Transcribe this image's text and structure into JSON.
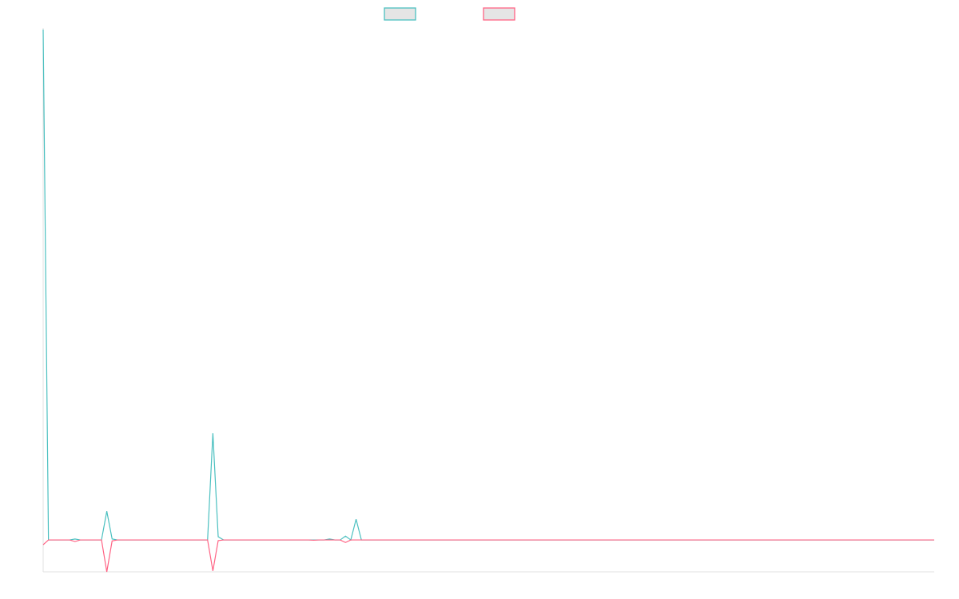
{
  "chart_data": {
    "type": "line",
    "title": "",
    "xlabel": "",
    "ylabel": "",
    "ylim": [
      -1,
      16
    ],
    "grid": false,
    "legend_placement": "top",
    "x_count": 169,
    "series": [
      {
        "color": "#4bc0c0",
        "legend_fill": "#e5e5e5",
        "values": [
          16,
          0,
          0,
          0,
          0,
          0,
          0.03,
          0,
          0,
          0,
          0,
          0,
          0.9,
          0.03,
          0,
          0,
          0,
          0,
          0,
          0,
          0,
          0,
          0,
          0,
          0,
          0,
          0,
          0,
          0,
          0,
          0,
          0,
          3.35,
          0.1,
          0,
          0,
          0,
          0,
          0,
          0,
          0,
          0,
          0,
          0,
          0,
          0,
          0,
          0,
          0,
          0,
          0,
          0,
          0,
          0,
          0.03,
          0,
          0,
          0.12,
          0,
          0.65,
          0,
          0,
          0,
          0,
          0,
          0,
          0,
          0,
          0,
          0,
          0,
          0,
          0,
          0,
          0,
          0,
          0,
          0,
          0,
          0,
          0,
          0,
          0,
          0,
          0,
          0,
          0,
          0,
          0,
          0,
          0,
          0,
          0,
          0,
          0,
          0,
          0,
          0,
          0,
          0,
          0,
          0,
          0,
          0,
          0,
          0,
          0,
          0,
          0,
          0,
          0,
          0,
          0,
          0,
          0,
          0,
          0,
          0,
          0,
          0,
          0,
          0,
          0,
          0,
          0,
          0,
          0,
          0,
          0,
          0,
          0,
          0,
          0,
          0,
          0,
          0,
          0,
          0,
          0,
          0,
          0,
          0,
          0,
          0,
          0,
          0,
          0,
          0,
          0,
          0,
          0,
          0,
          0,
          0,
          0,
          0,
          0,
          0,
          0,
          0,
          0,
          0,
          0,
          0,
          0,
          0,
          0,
          0,
          0
        ]
      },
      {
        "color": "#ff6384",
        "legend_fill": "#e5e5e5",
        "values": [
          -0.15,
          0,
          0,
          0,
          0,
          0,
          -0.05,
          0,
          0,
          0,
          0,
          0,
          -1,
          -0.03,
          0,
          0,
          0,
          0,
          0,
          0,
          0,
          0,
          0,
          0,
          0,
          0,
          0,
          0,
          0,
          0,
          0,
          0,
          -0.97,
          -0.02,
          0,
          0,
          0,
          0,
          0,
          0,
          0,
          0,
          0,
          0,
          0,
          0,
          0,
          0,
          0,
          0,
          0,
          -0.01,
          0,
          0,
          0,
          0,
          0,
          -0.08,
          0,
          0,
          0,
          0,
          0,
          0,
          0,
          0,
          0,
          0,
          0,
          0,
          0,
          0,
          0,
          0,
          0,
          0,
          0,
          0,
          0,
          0,
          0,
          0,
          0,
          0,
          0,
          0,
          0,
          0,
          0,
          0,
          0,
          0,
          0,
          0,
          0,
          0,
          0,
          0,
          0,
          0,
          0,
          0,
          0,
          0,
          0,
          0,
          0,
          0,
          0,
          0,
          0,
          0,
          0,
          0,
          0,
          0,
          0,
          0,
          0,
          0,
          0,
          0,
          0,
          0,
          0,
          0,
          0,
          0,
          0,
          0,
          0,
          0,
          0,
          0,
          0,
          0,
          0,
          0,
          0,
          0,
          0,
          0,
          0,
          0,
          0,
          0,
          0,
          0,
          0,
          0,
          0,
          0,
          0,
          0,
          0,
          0,
          0,
          0,
          0,
          0,
          0,
          0,
          0,
          0,
          0,
          0,
          0,
          0,
          0
        ]
      }
    ],
    "axis_color": "#e0e0e0"
  }
}
